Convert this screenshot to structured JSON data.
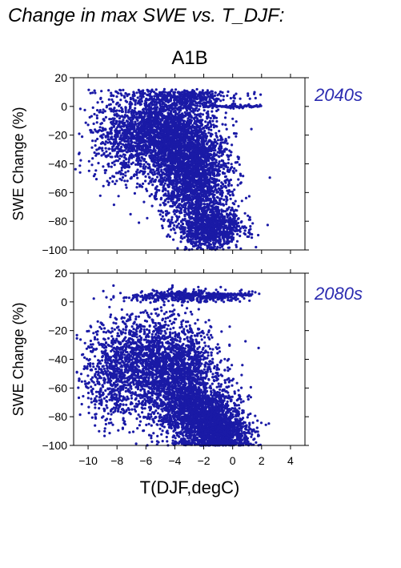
{
  "figure": {
    "title": "Change in max SWE vs. T_DJF:",
    "scenario": "A1B",
    "xlabel": "T(DJF,degC)",
    "point_color": "#1a1aa6",
    "label_color": "#2b2bb0"
  },
  "chart_data": [
    {
      "type": "scatter",
      "panel_label": "2040s",
      "ylabel": "SWE Change (%)",
      "xlim": [
        -11,
        5
      ],
      "ylim": [
        -100,
        20
      ],
      "xticks": [
        -10,
        -8,
        -6,
        -4,
        -2,
        0,
        2,
        4
      ],
      "yticks": [
        20,
        0,
        -20,
        -40,
        -60,
        -80,
        -100
      ],
      "ytick_labels": [
        "20",
        "0",
        "−20",
        "−40",
        "−60",
        "−80",
        "−100"
      ],
      "show_xtick_labels": false,
      "approx_point_count": 6000,
      "clusters": [
        {
          "cx": -5.2,
          "cy": -18,
          "sx": 1.6,
          "sy": 13,
          "weight": 0.3
        },
        {
          "cx": -3.0,
          "cy": -35,
          "sx": 1.3,
          "sy": 16,
          "weight": 0.27
        },
        {
          "cx": -2.5,
          "cy": -60,
          "sx": 1.2,
          "sy": 14,
          "weight": 0.16
        },
        {
          "cx": -1.5,
          "cy": -85,
          "sx": 1.1,
          "sy": 7,
          "weight": 0.15
        },
        {
          "cx": -7.8,
          "cy": -22,
          "sx": 1.2,
          "sy": 17,
          "weight": 0.06
        },
        {
          "cx": -3.5,
          "cy": 6,
          "sx": 1.8,
          "sy": 3,
          "weight": 0.06
        }
      ],
      "strip": {
        "y": 0,
        "x_from": -2,
        "x_to": 2.0
      }
    },
    {
      "type": "scatter",
      "panel_label": "2080s",
      "ylabel": "SWE Change (%)",
      "xlim": [
        -11,
        5
      ],
      "ylim": [
        -100,
        20
      ],
      "xticks": [
        -10,
        -8,
        -6,
        -4,
        -2,
        0,
        2,
        4
      ],
      "xtick_labels": [
        "−10",
        "−8",
        "−6",
        "−4",
        "−2",
        "0",
        "2",
        "4"
      ],
      "yticks": [
        20,
        0,
        -20,
        -40,
        -60,
        -80,
        -100
      ],
      "ytick_labels": [
        "20",
        "0",
        "−20",
        "−40",
        "−60",
        "−80",
        "−100"
      ],
      "show_xtick_labels": true,
      "approx_point_count": 6000,
      "clusters": [
        {
          "cx": -6.0,
          "cy": -42,
          "sx": 1.8,
          "sy": 18,
          "weight": 0.25
        },
        {
          "cx": -3.5,
          "cy": -55,
          "sx": 1.4,
          "sy": 18,
          "weight": 0.25
        },
        {
          "cx": -2.0,
          "cy": -80,
          "sx": 1.3,
          "sy": 10,
          "weight": 0.22
        },
        {
          "cx": -0.8,
          "cy": -92,
          "sx": 1.0,
          "sy": 6,
          "weight": 0.15
        },
        {
          "cx": -8.5,
          "cy": -55,
          "sx": 1.0,
          "sy": 15,
          "weight": 0.06
        },
        {
          "cx": -3.0,
          "cy": 4,
          "sx": 1.8,
          "sy": 2,
          "weight": 0.07
        }
      ],
      "strip": {
        "y": 5,
        "x_from": -1.5,
        "x_to": 1.3
      }
    }
  ]
}
